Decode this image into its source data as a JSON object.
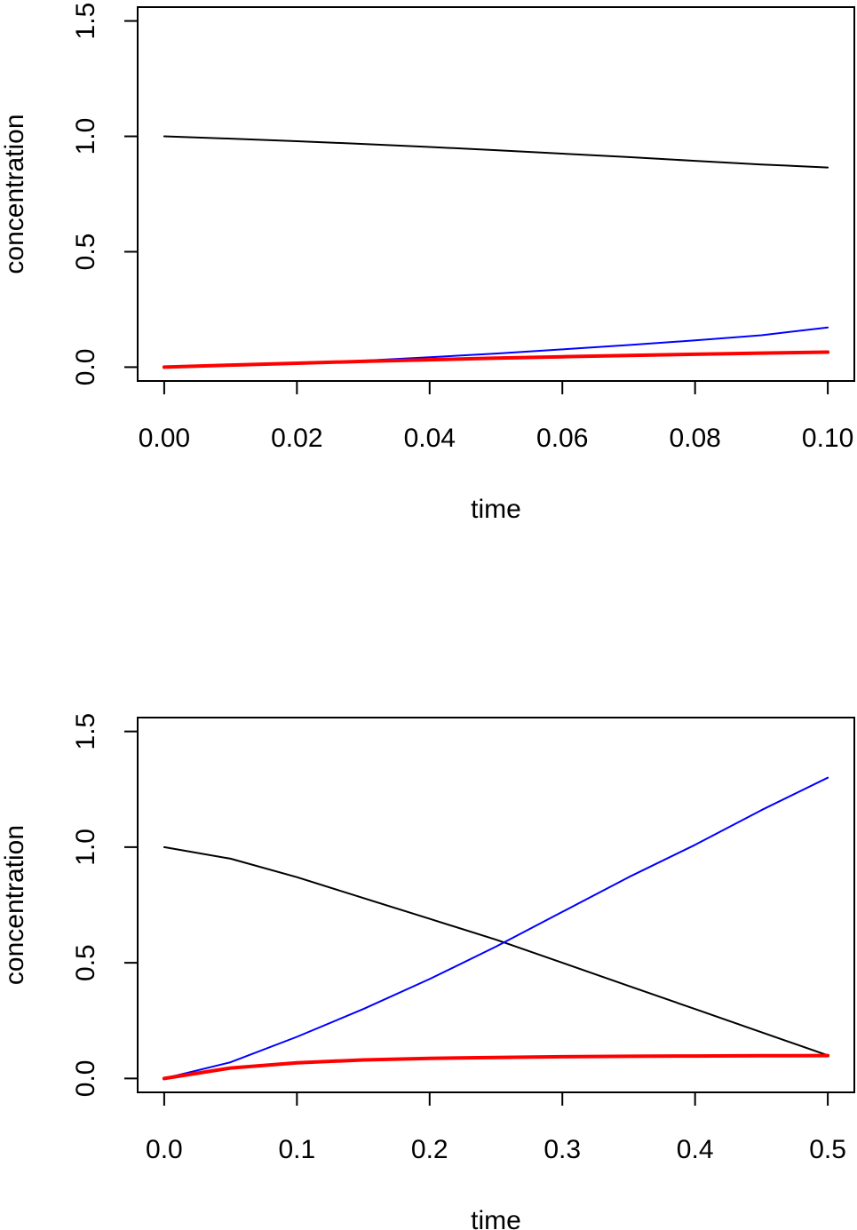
{
  "chart_data": [
    {
      "type": "line",
      "title": "",
      "xlabel": "time",
      "ylabel": "concentration",
      "xlim": [
        -0.004,
        0.104
      ],
      "ylim": [
        -0.06,
        1.56
      ],
      "xticks": [
        0.0,
        0.02,
        0.04,
        0.06,
        0.08,
        0.1
      ],
      "xtick_labels": [
        "0.00",
        "0.02",
        "0.04",
        "0.06",
        "0.08",
        "0.10"
      ],
      "yticks": [
        0.0,
        0.5,
        1.0,
        1.5
      ],
      "ytick_labels": [
        "0.0",
        "0.5",
        "1.0",
        "1.5"
      ],
      "grid": false,
      "legend": "none",
      "x": [
        0.0,
        0.01,
        0.02,
        0.03,
        0.04,
        0.05,
        0.06,
        0.07,
        0.08,
        0.09,
        0.1
      ],
      "series": [
        {
          "color": "#000000",
          "stroke_width": 2,
          "values": [
            1.0,
            0.99,
            0.979,
            0.967,
            0.954,
            0.94,
            0.925,
            0.91,
            0.894,
            0.878,
            0.865
          ]
        },
        {
          "color": "#0000ff",
          "stroke_width": 2,
          "values": [
            0.0,
            0.006,
            0.016,
            0.028,
            0.043,
            0.059,
            0.077,
            0.096,
            0.116,
            0.138,
            0.172
          ]
        },
        {
          "color": "#ff0000",
          "stroke_width": 4,
          "values": [
            0.0,
            0.009,
            0.017,
            0.025,
            0.032,
            0.039,
            0.045,
            0.051,
            0.056,
            0.061,
            0.065
          ]
        }
      ]
    },
    {
      "type": "line",
      "title": "",
      "xlabel": "time",
      "ylabel": "concentration",
      "xlim": [
        -0.02,
        0.52
      ],
      "ylim": [
        -0.06,
        1.56
      ],
      "xticks": [
        0.0,
        0.1,
        0.2,
        0.3,
        0.4,
        0.5
      ],
      "xtick_labels": [
        "0.0",
        "0.1",
        "0.2",
        "0.3",
        "0.4",
        "0.5"
      ],
      "yticks": [
        0.0,
        0.5,
        1.0,
        1.5
      ],
      "ytick_labels": [
        "0.0",
        "0.5",
        "1.0",
        "1.5"
      ],
      "grid": false,
      "legend": "none",
      "x": [
        0.0,
        0.05,
        0.1,
        0.15,
        0.2,
        0.25,
        0.3,
        0.35,
        0.4,
        0.45,
        0.5
      ],
      "series": [
        {
          "color": "#000000",
          "stroke_width": 2,
          "values": [
            1.0,
            0.95,
            0.87,
            0.78,
            0.69,
            0.6,
            0.5,
            0.4,
            0.3,
            0.2,
            0.1
          ]
        },
        {
          "color": "#0000ff",
          "stroke_width": 2,
          "values": [
            0.0,
            0.07,
            0.18,
            0.3,
            0.43,
            0.57,
            0.72,
            0.87,
            1.01,
            1.16,
            1.3
          ]
        },
        {
          "color": "#ff0000",
          "stroke_width": 4,
          "values": [
            0.0,
            0.045,
            0.068,
            0.08,
            0.087,
            0.091,
            0.094,
            0.096,
            0.097,
            0.098,
            0.099
          ]
        }
      ]
    }
  ]
}
